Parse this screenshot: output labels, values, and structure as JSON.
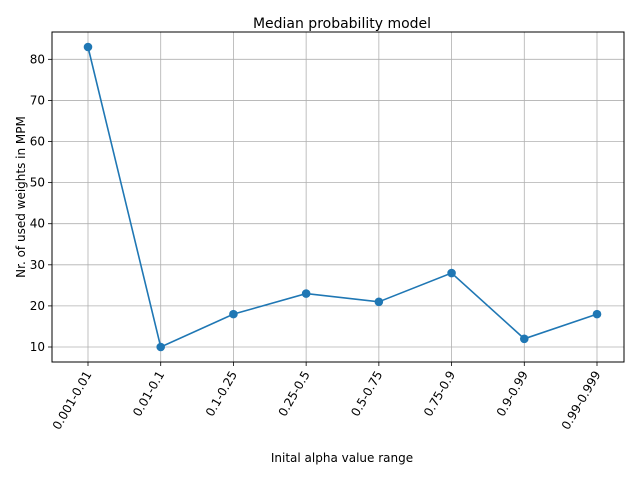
{
  "chart_data": {
    "type": "line",
    "title": "Median probability model",
    "xlabel": "Inital alpha value range",
    "ylabel": "Nr. of used weights in MPM",
    "categories": [
      "0.001-0.01",
      "0.01-0.1",
      "0.1-0.25",
      "0.25-0.5",
      "0.5-0.75",
      "0.75-0.9",
      "0.9-0.99",
      "0.99-0.999"
    ],
    "series": [
      {
        "values": [
          83,
          10,
          18,
          23,
          21,
          28,
          12,
          18
        ],
        "color": "#1f77b4",
        "marker": "circle"
      }
    ],
    "ylim": [
      6.35,
      86.65
    ],
    "yticks": [
      10,
      20,
      30,
      40,
      50,
      60,
      70,
      80
    ],
    "grid": true,
    "xtick_rotation": 60
  }
}
